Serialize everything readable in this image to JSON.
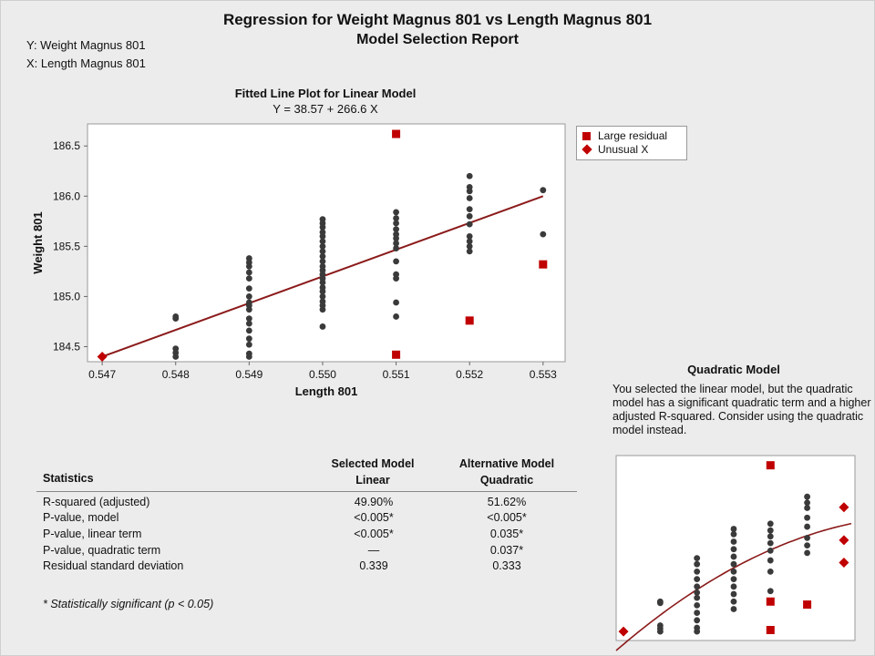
{
  "report": {
    "title": "Regression for Weight Magnus 801 vs Length Magnus 801",
    "subtitle": "Model Selection Report",
    "y_var": "Y: Weight Magnus 801",
    "x_var": "X: Length Magnus 801"
  },
  "colors": {
    "points": "#3a3a3a",
    "line": "#8b1a1a",
    "flag": "#c00000"
  },
  "chart_data": [
    {
      "type": "scatter",
      "title": "Fitted Line Plot for Linear Model",
      "subtitle": "Y = 38.57 + 266.6 X",
      "xlabel": "Length 801",
      "ylabel": "Weight 801",
      "xlim": [
        0.5468,
        0.5533
      ],
      "ylim": [
        184.35,
        186.72
      ],
      "xticks": [
        "0.547",
        "0.548",
        "0.549",
        "0.550",
        "0.551",
        "0.552",
        "0.553"
      ],
      "yticks": [
        "184.5",
        "185.0",
        "185.5",
        "186.0",
        "186.5"
      ],
      "grid": false,
      "legend_position": "right",
      "fit": {
        "intercept": 38.57,
        "slope": 266.6
      },
      "series": [
        {
          "name": "",
          "marker": "circle",
          "points": [
            [
              0.548,
              184.4
            ],
            [
              0.548,
              184.44
            ],
            [
              0.548,
              184.48
            ],
            [
              0.548,
              184.78
            ],
            [
              0.548,
              184.8
            ],
            [
              0.549,
              184.4
            ],
            [
              0.549,
              184.43
            ],
            [
              0.549,
              184.52
            ],
            [
              0.549,
              184.58
            ],
            [
              0.549,
              184.66
            ],
            [
              0.549,
              184.73
            ],
            [
              0.549,
              184.78
            ],
            [
              0.549,
              184.87
            ],
            [
              0.549,
              184.91
            ],
            [
              0.549,
              184.94
            ],
            [
              0.549,
              185.0
            ],
            [
              0.549,
              185.08
            ],
            [
              0.549,
              185.18
            ],
            [
              0.549,
              185.24
            ],
            [
              0.549,
              185.3
            ],
            [
              0.549,
              185.34
            ],
            [
              0.549,
              185.38
            ],
            [
              0.55,
              184.7
            ],
            [
              0.55,
              184.87
            ],
            [
              0.55,
              184.91
            ],
            [
              0.55,
              184.95
            ],
            [
              0.55,
              185.0
            ],
            [
              0.55,
              185.05
            ],
            [
              0.55,
              185.09
            ],
            [
              0.55,
              185.14
            ],
            [
              0.55,
              185.18
            ],
            [
              0.55,
              185.22
            ],
            [
              0.55,
              185.26
            ],
            [
              0.55,
              185.3
            ],
            [
              0.55,
              185.35
            ],
            [
              0.55,
              185.4
            ],
            [
              0.55,
              185.45
            ],
            [
              0.55,
              185.5
            ],
            [
              0.55,
              185.55
            ],
            [
              0.55,
              185.6
            ],
            [
              0.55,
              185.64
            ],
            [
              0.55,
              185.69
            ],
            [
              0.55,
              185.73
            ],
            [
              0.55,
              185.77
            ],
            [
              0.551,
              184.8
            ],
            [
              0.551,
              184.94
            ],
            [
              0.551,
              185.18
            ],
            [
              0.551,
              185.22
            ],
            [
              0.551,
              185.35
            ],
            [
              0.551,
              185.48
            ],
            [
              0.551,
              185.53
            ],
            [
              0.551,
              185.58
            ],
            [
              0.551,
              185.62
            ],
            [
              0.551,
              185.67
            ],
            [
              0.551,
              185.73
            ],
            [
              0.551,
              185.78
            ],
            [
              0.551,
              185.84
            ],
            [
              0.552,
              185.45
            ],
            [
              0.552,
              185.5
            ],
            [
              0.552,
              185.55
            ],
            [
              0.552,
              185.6
            ],
            [
              0.552,
              185.72
            ],
            [
              0.552,
              185.8
            ],
            [
              0.552,
              185.87
            ],
            [
              0.552,
              185.98
            ],
            [
              0.552,
              186.05
            ],
            [
              0.552,
              186.09
            ],
            [
              0.552,
              186.2
            ],
            [
              0.553,
              185.62
            ],
            [
              0.553,
              186.06
            ]
          ]
        },
        {
          "name": "Large residual",
          "marker": "square",
          "points": [
            [
              0.551,
              186.62
            ],
            [
              0.551,
              184.42
            ],
            [
              0.552,
              184.76
            ],
            [
              0.553,
              185.32
            ]
          ]
        },
        {
          "name": "Unusual X",
          "marker": "diamond",
          "points": [
            [
              0.547,
              184.4
            ]
          ]
        }
      ]
    },
    {
      "type": "scatter",
      "title": "Quadratic Model",
      "xlim": [
        0.5468,
        0.5533
      ],
      "ylim": [
        184.28,
        186.75
      ],
      "axes_labels_shown": false,
      "fit": "quadratic",
      "series": [
        {
          "name": "",
          "marker": "circle",
          "points": [
            [
              0.548,
              184.4
            ],
            [
              0.548,
              184.44
            ],
            [
              0.548,
              184.48
            ],
            [
              0.548,
              184.78
            ],
            [
              0.548,
              184.8
            ],
            [
              0.549,
              184.4
            ],
            [
              0.549,
              184.45
            ],
            [
              0.549,
              184.55
            ],
            [
              0.549,
              184.65
            ],
            [
              0.549,
              184.75
            ],
            [
              0.549,
              184.85
            ],
            [
              0.549,
              184.92
            ],
            [
              0.549,
              185.0
            ],
            [
              0.549,
              185.1
            ],
            [
              0.549,
              185.2
            ],
            [
              0.549,
              185.3
            ],
            [
              0.549,
              185.38
            ],
            [
              0.55,
              184.7
            ],
            [
              0.55,
              184.8
            ],
            [
              0.55,
              184.9
            ],
            [
              0.55,
              185.0
            ],
            [
              0.55,
              185.1
            ],
            [
              0.55,
              185.2
            ],
            [
              0.55,
              185.3
            ],
            [
              0.55,
              185.4
            ],
            [
              0.55,
              185.5
            ],
            [
              0.55,
              185.6
            ],
            [
              0.55,
              185.7
            ],
            [
              0.55,
              185.77
            ],
            [
              0.551,
              184.94
            ],
            [
              0.551,
              185.2
            ],
            [
              0.551,
              185.35
            ],
            [
              0.551,
              185.48
            ],
            [
              0.551,
              185.58
            ],
            [
              0.551,
              185.67
            ],
            [
              0.551,
              185.75
            ],
            [
              0.551,
              185.84
            ],
            [
              0.552,
              185.45
            ],
            [
              0.552,
              185.55
            ],
            [
              0.552,
              185.65
            ],
            [
              0.552,
              185.8
            ],
            [
              0.552,
              185.92
            ],
            [
              0.552,
              186.05
            ],
            [
              0.552,
              186.12
            ],
            [
              0.552,
              186.2
            ]
          ]
        },
        {
          "name": "Large residual",
          "marker": "square",
          "points": [
            [
              0.551,
              186.62
            ],
            [
              0.551,
              184.8
            ],
            [
              0.551,
              184.42
            ],
            [
              0.552,
              184.76
            ]
          ]
        },
        {
          "name": "Unusual X",
          "marker": "diamond",
          "points": [
            [
              0.547,
              184.4
            ],
            [
              0.553,
              186.06
            ],
            [
              0.553,
              185.62
            ],
            [
              0.553,
              185.32
            ]
          ]
        }
      ]
    }
  ],
  "quadratic": {
    "title": "Quadratic Model",
    "text": "You selected the linear model, but the quadratic model has a significant quadratic term and a higher adjusted R-squared. Consider using the quadratic model instead."
  },
  "stats": {
    "label_header": "Statistics",
    "col1": {
      "line1": "Selected Model",
      "line2": "Linear"
    },
    "col2": {
      "line1": "Alternative Model",
      "line2": "Quadratic"
    },
    "rows": [
      {
        "label": "R-squared (adjusted)",
        "linear": "49.90%",
        "quadratic": "51.62%"
      },
      {
        "label": "P-value, model",
        "linear": "<0.005*",
        "quadratic": "<0.005*"
      },
      {
        "label": "P-value, linear term",
        "linear": "<0.005*",
        "quadratic": "0.035*"
      },
      {
        "label": "P-value, quadratic term",
        "linear": "—",
        "quadratic": "0.037*"
      },
      {
        "label": "Residual standard deviation",
        "linear": "0.339",
        "quadratic": "0.333"
      }
    ],
    "footnote": "* Statistically significant (p < 0.05)"
  }
}
